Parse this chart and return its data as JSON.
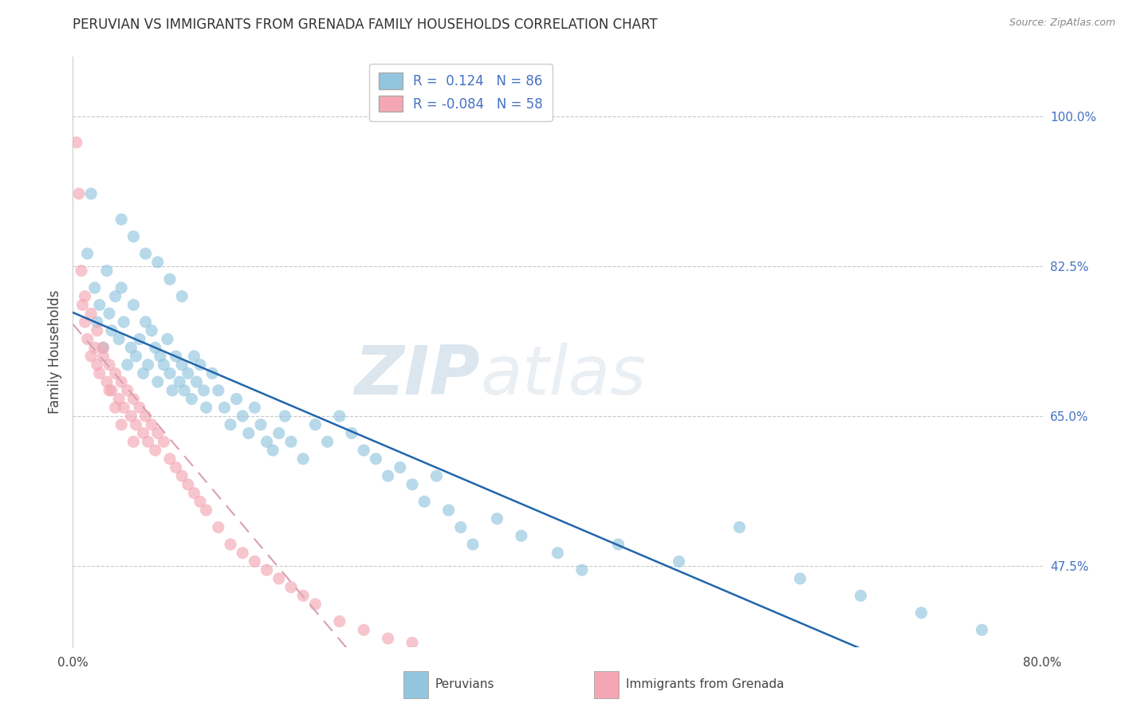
{
  "title": "PERUVIAN VS IMMIGRANTS FROM GRENADA FAMILY HOUSEHOLDS CORRELATION CHART",
  "source": "Source: ZipAtlas.com",
  "ylabel": "Family Households",
  "y_ticks_right": [
    47.5,
    65.0,
    82.5,
    100.0
  ],
  "y_tick_labels_right": [
    "47.5%",
    "65.0%",
    "82.5%",
    "100.0%"
  ],
  "xlim": [
    0.0,
    80.0
  ],
  "ylim": [
    38.0,
    107.0
  ],
  "blue_R": 0.124,
  "blue_N": 86,
  "pink_R": -0.084,
  "pink_N": 58,
  "blue_color": "#92c5de",
  "pink_color": "#f4a7b3",
  "blue_line_color": "#2166ac",
  "pink_line_color": "#d9a0b0",
  "legend_label_blue": "Peruvians",
  "legend_label_pink": "Immigrants from Grenada",
  "watermark_zip": "ZIP",
  "watermark_atlas": "atlas",
  "background_color": "#ffffff",
  "grid_color": "#bbbbbb",
  "blue_scatter_x": [
    1.2,
    1.5,
    1.8,
    2.0,
    2.2,
    2.5,
    2.8,
    3.0,
    3.2,
    3.5,
    3.8,
    4.0,
    4.2,
    4.5,
    4.8,
    5.0,
    5.2,
    5.5,
    5.8,
    6.0,
    6.2,
    6.5,
    6.8,
    7.0,
    7.2,
    7.5,
    7.8,
    8.0,
    8.2,
    8.5,
    8.8,
    9.0,
    9.2,
    9.5,
    9.8,
    10.0,
    10.2,
    10.5,
    10.8,
    11.0,
    11.5,
    12.0,
    12.5,
    13.0,
    13.5,
    14.0,
    14.5,
    15.0,
    15.5,
    16.0,
    16.5,
    17.0,
    17.5,
    18.0,
    19.0,
    20.0,
    21.0,
    22.0,
    23.0,
    24.0,
    25.0,
    26.0,
    27.0,
    28.0,
    29.0,
    30.0,
    31.0,
    32.0,
    33.0,
    35.0,
    37.0,
    40.0,
    42.0,
    45.0,
    50.0,
    55.0,
    60.0,
    65.0,
    70.0,
    75.0,
    4.0,
    5.0,
    6.0,
    7.0,
    8.0,
    9.0
  ],
  "blue_scatter_y": [
    84.0,
    91.0,
    80.0,
    76.0,
    78.0,
    73.0,
    82.0,
    77.0,
    75.0,
    79.0,
    74.0,
    80.0,
    76.0,
    71.0,
    73.0,
    78.0,
    72.0,
    74.0,
    70.0,
    76.0,
    71.0,
    75.0,
    73.0,
    69.0,
    72.0,
    71.0,
    74.0,
    70.0,
    68.0,
    72.0,
    69.0,
    71.0,
    68.0,
    70.0,
    67.0,
    72.0,
    69.0,
    71.0,
    68.0,
    66.0,
    70.0,
    68.0,
    66.0,
    64.0,
    67.0,
    65.0,
    63.0,
    66.0,
    64.0,
    62.0,
    61.0,
    63.0,
    65.0,
    62.0,
    60.0,
    64.0,
    62.0,
    65.0,
    63.0,
    61.0,
    60.0,
    58.0,
    59.0,
    57.0,
    55.0,
    58.0,
    54.0,
    52.0,
    50.0,
    53.0,
    51.0,
    49.0,
    47.0,
    50.0,
    48.0,
    52.0,
    46.0,
    44.0,
    42.0,
    40.0,
    88.0,
    86.0,
    84.0,
    83.0,
    81.0,
    79.0
  ],
  "pink_scatter_x": [
    0.3,
    0.5,
    0.7,
    0.8,
    1.0,
    1.2,
    1.5,
    1.8,
    2.0,
    2.2,
    2.5,
    2.8,
    3.0,
    3.2,
    3.5,
    3.8,
    4.0,
    4.2,
    4.5,
    4.8,
    5.0,
    5.2,
    5.5,
    5.8,
    6.0,
    6.2,
    6.5,
    6.8,
    7.0,
    7.5,
    8.0,
    8.5,
    9.0,
    9.5,
    10.0,
    10.5,
    11.0,
    12.0,
    13.0,
    14.0,
    15.0,
    16.0,
    17.0,
    18.0,
    19.0,
    20.0,
    22.0,
    24.0,
    26.0,
    28.0,
    1.0,
    1.5,
    2.0,
    2.5,
    3.0,
    3.5,
    4.0,
    5.0
  ],
  "pink_scatter_y": [
    97.0,
    91.0,
    82.0,
    78.0,
    76.0,
    74.0,
    72.0,
    73.0,
    71.0,
    70.0,
    72.0,
    69.0,
    71.0,
    68.0,
    70.0,
    67.0,
    69.0,
    66.0,
    68.0,
    65.0,
    67.0,
    64.0,
    66.0,
    63.0,
    65.0,
    62.0,
    64.0,
    61.0,
    63.0,
    62.0,
    60.0,
    59.0,
    58.0,
    57.0,
    56.0,
    55.0,
    54.0,
    52.0,
    50.0,
    49.0,
    48.0,
    47.0,
    46.0,
    45.0,
    44.0,
    43.0,
    41.0,
    40.0,
    39.0,
    38.5,
    79.0,
    77.0,
    75.0,
    73.0,
    68.0,
    66.0,
    64.0,
    62.0
  ]
}
